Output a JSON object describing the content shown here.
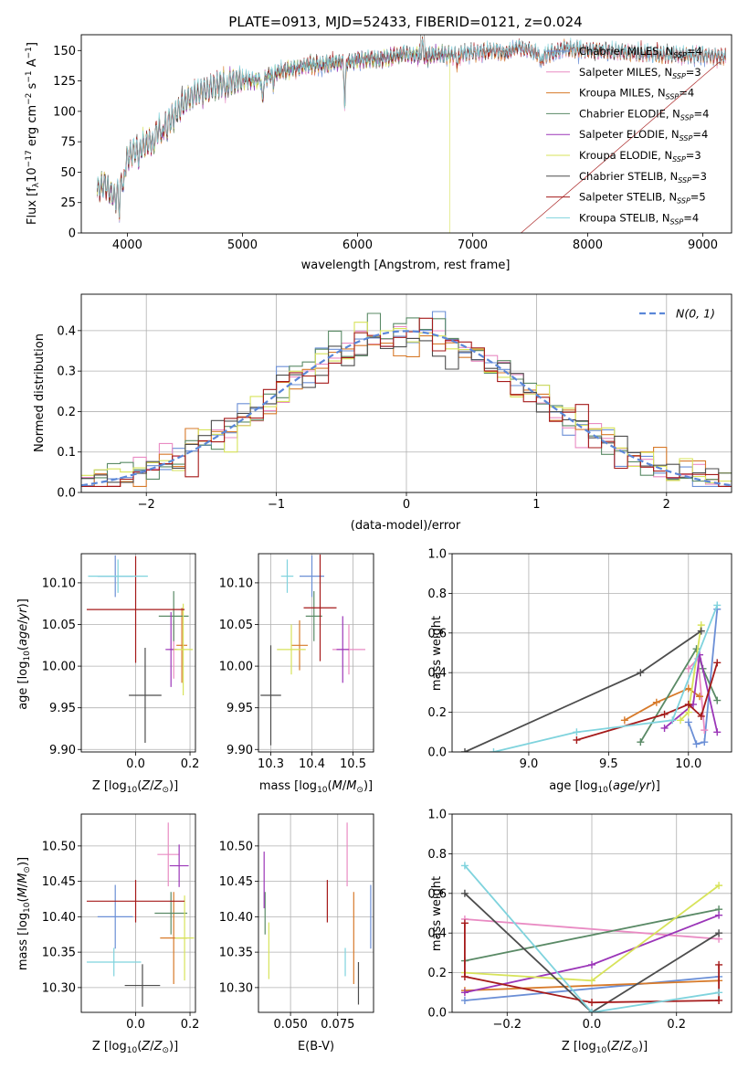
{
  "colors": {
    "Chabrier MILES": "#6b8fd6",
    "Salpeter MILES": "#e98bc3",
    "Kroupa MILES": "#d77a2a",
    "Chabrier ELODIE": "#5a8a66",
    "Salpeter ELODIE": "#9b36b8",
    "Kroupa ELODIE": "#d7e35a",
    "Chabrier STELIB": "#4d4d4d",
    "Salpeter STELIB": "#a51a1a",
    "Kroupa STELIB": "#7fd3dd",
    "normal_curve": "#5b87d8"
  },
  "chart_data": [
    {
      "id": "spectrum",
      "type": "line",
      "title": "PLATE=0913, MJD=52433, FIBERID=0121, z=0.024",
      "xlabel": "wavelength [Angstrom, rest frame]",
      "ylabel": "Flux [f_λ 10^-17 erg cm^-2 s^-1 A^-1]",
      "xlim": [
        3600,
        9250
      ],
      "ylim": [
        0,
        163
      ],
      "xticks": [
        4000,
        5000,
        6000,
        7000,
        8000,
        9000
      ],
      "yticks": [
        0,
        25,
        50,
        75,
        100,
        125,
        150
      ],
      "legend": "top-right",
      "legend_entries": [
        {
          "model": "Chabrier MILES",
          "nssp": "4"
        },
        {
          "model": "Salpeter MILES",
          "nssp": "3"
        },
        {
          "model": "Kroupa MILES",
          "nssp": "4"
        },
        {
          "model": "Chabrier ELODIE",
          "nssp": "4"
        },
        {
          "model": "Salpeter ELODIE",
          "nssp": "4"
        },
        {
          "model": "Kroupa ELODIE",
          "nssp": "3"
        },
        {
          "model": "Chabrier STELIB",
          "nssp": "3"
        },
        {
          "model": "Salpeter STELIB",
          "nssp": "5"
        },
        {
          "model": "Kroupa STELIB",
          "nssp": "4"
        }
      ],
      "continuum": [
        [
          3740,
          35
        ],
        [
          3800,
          40
        ],
        [
          3900,
          28
        ],
        [
          3950,
          45
        ],
        [
          4000,
          62
        ],
        [
          4100,
          70
        ],
        [
          4200,
          75
        ],
        [
          4300,
          88
        ],
        [
          4400,
          95
        ],
        [
          4500,
          108
        ],
        [
          4600,
          115
        ],
        [
          4700,
          118
        ],
        [
          4800,
          122
        ],
        [
          4900,
          124
        ],
        [
          5000,
          126
        ],
        [
          5100,
          125
        ],
        [
          5200,
          127
        ],
        [
          5300,
          132
        ],
        [
          5400,
          134
        ],
        [
          5500,
          136
        ],
        [
          5600,
          138
        ],
        [
          5700,
          138
        ],
        [
          5800,
          140
        ],
        [
          5900,
          140
        ],
        [
          6000,
          142
        ],
        [
          6100,
          143
        ],
        [
          6200,
          143
        ],
        [
          6300,
          145
        ],
        [
          6400,
          147
        ],
        [
          6500,
          146
        ],
        [
          6600,
          145
        ],
        [
          6700,
          147
        ],
        [
          6800,
          146
        ],
        [
          6900,
          147
        ],
        [
          7000,
          148
        ],
        [
          7100,
          149
        ],
        [
          7200,
          150
        ],
        [
          7300,
          148
        ],
        [
          7400,
          153
        ],
        [
          7500,
          150
        ],
        [
          7600,
          145
        ],
        [
          7700,
          148
        ],
        [
          7800,
          152
        ],
        [
          7900,
          151
        ],
        [
          8000,
          150
        ],
        [
          8200,
          149
        ],
        [
          8400,
          148
        ],
        [
          8600,
          147
        ],
        [
          8800,
          146
        ],
        [
          9000,
          146
        ],
        [
          9200,
          145
        ]
      ],
      "absorption_lines": [
        [
          3933,
          20
        ],
        [
          3968,
          18
        ],
        [
          4102,
          10
        ],
        [
          4227,
          8
        ],
        [
          4304,
          14
        ],
        [
          4341,
          8
        ],
        [
          4861,
          10
        ],
        [
          5175,
          20
        ],
        [
          5270,
          8
        ],
        [
          5890,
          35
        ],
        [
          6563,
          -12
        ],
        [
          6870,
          10
        ],
        [
          7600,
          6
        ]
      ],
      "artifacts": [
        {
          "model": "Kroupa ELODIE",
          "wavelength": 6800,
          "flux_drop_to": 0
        },
        {
          "model": "Salpeter STELIB",
          "wavelength": 7420,
          "flux_drop_to": 0
        },
        {
          "model": "Kroupa ELODIE",
          "wavelength": 3910,
          "flux_drop_to": 0
        }
      ]
    },
    {
      "id": "residuals",
      "type": "line",
      "xlabel": "(data-model)/error",
      "ylabel": "Normed distribution",
      "xlim": [
        -2.5,
        2.5
      ],
      "ylim": [
        0,
        0.49
      ],
      "xticks": [
        -2,
        -1,
        0,
        1,
        2
      ],
      "xtick_labels": [
        "−2",
        "−1",
        "0",
        "1",
        "2"
      ],
      "yticks": [
        0.0,
        0.1,
        0.2,
        0.3,
        0.4
      ],
      "yticklabels": [
        "0.0",
        "0.1",
        "0.2",
        "0.3",
        "0.4"
      ],
      "legend_label": "N(0,1)",
      "bin_width": 0.1,
      "histogram_models": [
        "Chabrier MILES",
        "Salpeter MILES",
        "Kroupa MILES",
        "Chabrier ELODIE",
        "Kroupa ELODIE",
        "Chabrier STELIB",
        "Salpeter STELIB"
      ],
      "note": "step histograms approximately Gaussian with sigma ~1.05 centered at 0"
    },
    {
      "id": "age_vs_Z",
      "type": "scatter",
      "xlabel": "Z [log10(Z/Z⊙)]",
      "ylabel": "age [log10(age/yr)]",
      "xlim": [
        -0.2,
        0.22
      ],
      "ylim": [
        9.897,
        10.135
      ],
      "xticks": [
        0.0,
        0.2
      ],
      "xticklabels": [
        "0.0",
        "0.2"
      ],
      "yticks": [
        9.9,
        9.95,
        10.0,
        10.05,
        10.1
      ],
      "yticklabels": [
        "9.90",
        "9.95",
        "10.00",
        "10.05",
        "10.10"
      ],
      "points": [
        {
          "model": "Chabrier MILES",
          "x": -0.075,
          "y": 10.108,
          "xerr": 0.065,
          "yerr": 0.025
        },
        {
          "model": "Salpeter MILES",
          "x": 0.14,
          "y": 10.02,
          "xerr": 0.015,
          "yerr": 0.035
        },
        {
          "model": "Kroupa MILES",
          "x": 0.17,
          "y": 10.025,
          "xerr": 0.02,
          "yerr": 0.045
        },
        {
          "model": "Chabrier ELODIE",
          "x": 0.14,
          "y": 10.06,
          "xerr": 0.055,
          "yerr": 0.03
        },
        {
          "model": "Salpeter ELODIE",
          "x": 0.13,
          "y": 10.02,
          "xerr": 0.02,
          "yerr": 0.045
        },
        {
          "model": "Kroupa ELODIE",
          "x": 0.175,
          "y": 10.02,
          "xerr": 0.035,
          "yerr": 0.055
        },
        {
          "model": "Chabrier STELIB",
          "x": 0.035,
          "y": 9.965,
          "xerr": 0.06,
          "yerr": 0.057
        },
        {
          "model": "Salpeter STELIB",
          "x": 0.0,
          "y": 10.068,
          "xerr": 0.18,
          "yerr": 0.064
        },
        {
          "model": "Kroupa STELIB",
          "x": -0.065,
          "y": 10.108,
          "xerr": 0.11,
          "yerr": 0.02
        }
      ]
    },
    {
      "id": "age_vs_mass",
      "type": "scatter",
      "xlabel": "mass [log10(M/M⊙)]",
      "ylabel": "",
      "xlim": [
        10.27,
        10.55
      ],
      "ylim": [
        9.897,
        10.135
      ],
      "xticks": [
        10.3,
        10.4,
        10.5
      ],
      "xticklabels": [
        "10.3",
        "10.4",
        "10.5"
      ],
      "yticks": [
        9.9,
        9.95,
        10.0,
        10.05,
        10.1
      ],
      "yticklabels": [
        "9.90",
        "9.95",
        "10.00",
        "10.05",
        "10.10"
      ],
      "points": [
        {
          "model": "Chabrier MILES",
          "x": 10.4,
          "y": 10.108,
          "xerr": 0.03,
          "yerr": 0.025
        },
        {
          "model": "Salpeter MILES",
          "x": 10.49,
          "y": 10.02,
          "xerr": 0.04,
          "yerr": 0.03
        },
        {
          "model": "Kroupa MILES",
          "x": 10.37,
          "y": 10.025,
          "xerr": 0.02,
          "yerr": 0.03
        },
        {
          "model": "Chabrier ELODIE",
          "x": 10.405,
          "y": 10.06,
          "xerr": 0.02,
          "yerr": 0.03
        },
        {
          "model": "Salpeter ELODIE",
          "x": 10.475,
          "y": 10.02,
          "xerr": 0.015,
          "yerr": 0.04
        },
        {
          "model": "Kroupa ELODIE",
          "x": 10.35,
          "y": 10.02,
          "xerr": 0.035,
          "yerr": 0.03
        },
        {
          "model": "Chabrier STELIB",
          "x": 10.3,
          "y": 9.965,
          "xerr": 0.025,
          "yerr": 0.06
        },
        {
          "model": "Salpeter STELIB",
          "x": 10.42,
          "y": 10.07,
          "xerr": 0.04,
          "yerr": 0.064
        },
        {
          "model": "Kroupa STELIB",
          "x": 10.34,
          "y": 10.108,
          "xerr": 0.015,
          "yerr": 0.02
        }
      ]
    },
    {
      "id": "weight_vs_age",
      "type": "line",
      "xlabel": "age [log10(age/yr)]",
      "ylabel": "mass weight",
      "xlim": [
        8.52,
        10.27
      ],
      "ylim": [
        0,
        1
      ],
      "xticks": [
        9.0,
        9.5,
        10.0
      ],
      "xticklabels": [
        "9.0",
        "9.5",
        "10.0"
      ],
      "yticks": [
        0,
        0.2,
        0.4,
        0.6,
        0.8,
        1.0
      ],
      "yticklabels": [
        "0.0",
        "0.2",
        "0.4",
        "0.6",
        "0.8",
        "1.0"
      ],
      "series": [
        {
          "model": "Chabrier MILES",
          "x": [
            10.0,
            10.05,
            10.1,
            10.18
          ],
          "y": [
            0.15,
            0.04,
            0.05,
            0.72
          ]
        },
        {
          "model": "Salpeter MILES",
          "x": [
            10.0,
            10.06,
            10.1
          ],
          "y": [
            0.42,
            0.47,
            0.11
          ]
        },
        {
          "model": "Kroupa MILES",
          "x": [
            9.6,
            9.8,
            10.0,
            10.07
          ],
          "y": [
            0.16,
            0.25,
            0.32,
            0.28
          ]
        },
        {
          "model": "Chabrier ELODIE",
          "x": [
            9.7,
            10.05,
            10.09,
            10.18
          ],
          "y": [
            0.05,
            0.52,
            0.42,
            0.26
          ]
        },
        {
          "model": "Salpeter ELODIE",
          "x": [
            9.85,
            10.03,
            10.07,
            10.18
          ],
          "y": [
            0.12,
            0.24,
            0.49,
            0.1
          ]
        },
        {
          "model": "Kroupa ELODIE",
          "x": [
            9.95,
            10.0,
            10.08
          ],
          "y": [
            0.16,
            0.2,
            0.64
          ]
        },
        {
          "model": "Chabrier STELIB",
          "x": [
            8.6,
            9.7,
            10.08
          ],
          "y": [
            0.0,
            0.4,
            0.61
          ]
        },
        {
          "model": "Salpeter STELIB",
          "x": [
            9.3,
            9.85,
            10.0,
            10.08,
            10.18
          ],
          "y": [
            0.06,
            0.19,
            0.24,
            0.18,
            0.45
          ]
        },
        {
          "model": "Kroupa STELIB",
          "x": [
            8.78,
            9.3,
            9.9,
            10.18
          ],
          "y": [
            0.0,
            0.1,
            0.16,
            0.74
          ]
        }
      ]
    },
    {
      "id": "mass_vs_Z",
      "type": "scatter",
      "xlabel": "Z [log10(Z/Z⊙)]",
      "ylabel": "mass [log10(M/M⊙)]",
      "xlim": [
        -0.2,
        0.22
      ],
      "ylim": [
        10.265,
        10.545
      ],
      "xticks": [
        0.0,
        0.2
      ],
      "xticklabels": [
        "0.0",
        "0.2"
      ],
      "yticks": [
        10.3,
        10.35,
        10.4,
        10.45,
        10.5
      ],
      "yticklabels": [
        "10.30",
        "10.35",
        "10.40",
        "10.45",
        "10.50"
      ],
      "points": [
        {
          "model": "Chabrier MILES",
          "x": -0.075,
          "y": 10.4,
          "xerr": 0.065,
          "yerr": 0.045
        },
        {
          "model": "Salpeter MILES",
          "x": 0.12,
          "y": 10.488,
          "xerr": 0.04,
          "yerr": 0.045
        },
        {
          "model": "Kroupa MILES",
          "x": 0.14,
          "y": 10.37,
          "xerr": 0.05,
          "yerr": 0.065
        },
        {
          "model": "Chabrier ELODIE",
          "x": 0.13,
          "y": 10.405,
          "xerr": 0.06,
          "yerr": 0.03
        },
        {
          "model": "Salpeter ELODIE",
          "x": 0.16,
          "y": 10.472,
          "xerr": 0.035,
          "yerr": 0.03
        },
        {
          "model": "Kroupa ELODIE",
          "x": 0.18,
          "y": 10.37,
          "xerr": 0.035,
          "yerr": 0.06
        },
        {
          "model": "Chabrier STELIB",
          "x": 0.025,
          "y": 10.303,
          "xerr": 0.065,
          "yerr": 0.03
        },
        {
          "model": "Salpeter STELIB",
          "x": 0.0,
          "y": 10.422,
          "xerr": 0.18,
          "yerr": 0.03
        },
        {
          "model": "Kroupa STELIB",
          "x": -0.08,
          "y": 10.336,
          "xerr": 0.1,
          "yerr": 0.02
        }
      ]
    },
    {
      "id": "mass_vs_EBV",
      "type": "scatter",
      "xlabel": "E(B-V)",
      "ylabel": "",
      "xlim": [
        0.033,
        0.094
      ],
      "ylim": [
        10.265,
        10.545
      ],
      "xticks": [
        0.05,
        0.075
      ],
      "xticklabels": [
        "0.050",
        "0.075"
      ],
      "yticks": [
        10.3,
        10.35,
        10.4,
        10.45,
        10.5
      ],
      "yticklabels": [
        "10.30",
        "10.35",
        "10.40",
        "10.45",
        "10.50"
      ],
      "points": [
        {
          "model": "Chabrier MILES",
          "x": 0.0925,
          "y": 10.4,
          "xerr": 0,
          "yerr": 0.045
        },
        {
          "model": "Salpeter MILES",
          "x": 0.08,
          "y": 10.488,
          "xerr": 0,
          "yerr": 0.045
        },
        {
          "model": "Kroupa MILES",
          "x": 0.0835,
          "y": 10.37,
          "xerr": 0,
          "yerr": 0.065
        },
        {
          "model": "Chabrier ELODIE",
          "x": 0.0365,
          "y": 10.405,
          "xerr": 0,
          "yerr": 0.03
        },
        {
          "model": "Salpeter ELODIE",
          "x": 0.036,
          "y": 10.452,
          "xerr": 0,
          "yerr": 0.04
        },
        {
          "model": "Kroupa ELODIE",
          "x": 0.0385,
          "y": 10.352,
          "xerr": 0,
          "yerr": 0.04
        },
        {
          "model": "Chabrier STELIB",
          "x": 0.086,
          "y": 10.306,
          "xerr": 0,
          "yerr": 0.03
        },
        {
          "model": "Salpeter STELIB",
          "x": 0.0695,
          "y": 10.422,
          "xerr": 0,
          "yerr": 0.03
        },
        {
          "model": "Kroupa STELIB",
          "x": 0.079,
          "y": 10.336,
          "xerr": 0,
          "yerr": 0.02
        }
      ]
    },
    {
      "id": "weight_vs_Z",
      "type": "line",
      "xlabel": "Z [log10(Z/Z⊙)]",
      "ylabel": "mass weight",
      "xlim": [
        -0.33,
        0.33
      ],
      "ylim": [
        0,
        1
      ],
      "xticks": [
        -0.2,
        0.0,
        0.2
      ],
      "xticklabels": [
        "−0.2",
        "0.0",
        "0.2"
      ],
      "yticks": [
        0,
        0.2,
        0.4,
        0.6,
        0.8,
        1.0
      ],
      "yticklabels": [
        "0.0",
        "0.2",
        "0.4",
        "0.6",
        "0.8",
        "1.0"
      ],
      "series": [
        {
          "model": "Chabrier MILES",
          "x": [
            -0.3,
            0.3
          ],
          "y": [
            0.06,
            0.18
          ]
        },
        {
          "model": "Salpeter MILES",
          "x": [
            -0.3,
            0.3
          ],
          "y": [
            0.47,
            0.37
          ]
        },
        {
          "model": "Kroupa MILES",
          "x": [
            -0.3,
            0.3
          ],
          "y": [
            0.11,
            0.16
          ]
        },
        {
          "model": "Chabrier ELODIE",
          "x": [
            -0.3,
            0.3
          ],
          "y": [
            0.26,
            0.52
          ]
        },
        {
          "model": "Salpeter ELODIE",
          "x": [
            -0.3,
            0.0,
            0.3
          ],
          "y": [
            0.1,
            0.24,
            0.49
          ]
        },
        {
          "model": "Kroupa ELODIE",
          "x": [
            -0.3,
            0.0,
            0.3
          ],
          "y": [
            0.2,
            0.16,
            0.64
          ]
        },
        {
          "model": "Chabrier STELIB",
          "x": [
            -0.3,
            0.0,
            0.3
          ],
          "y": [
            0.6,
            0.0,
            0.4
          ]
        },
        {
          "model": "Salpeter STELIB",
          "x": [
            -0.3,
            -0.3,
            0.0,
            0.3,
            0.3
          ],
          "y": [
            0.45,
            0.18,
            0.05,
            0.06,
            0.24
          ]
        },
        {
          "model": "Kroupa STELIB",
          "x": [
            -0.3,
            0.0,
            0.3
          ],
          "y": [
            0.74,
            0.0,
            0.1
          ]
        }
      ]
    }
  ]
}
